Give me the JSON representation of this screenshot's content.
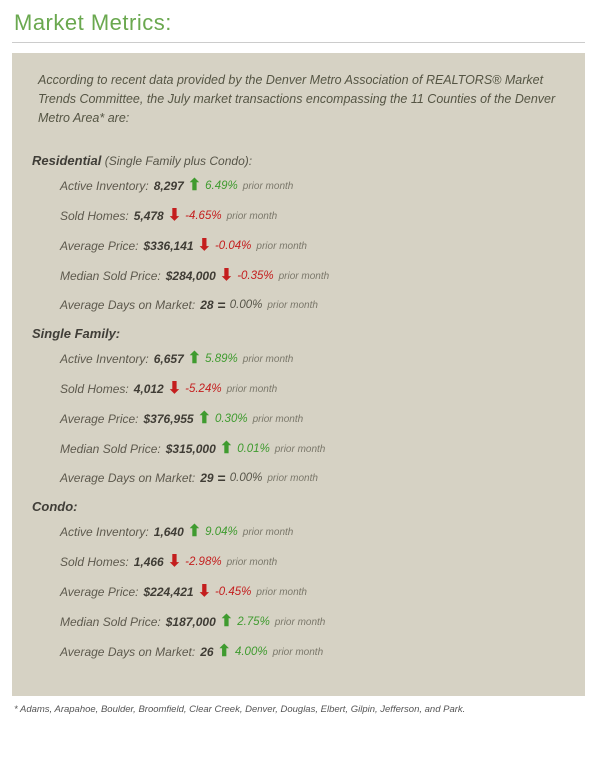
{
  "title": "Market Metrics:",
  "intro": "According to recent data provided by the Denver Metro Association of REALTORS® Market Trends Committee, the July market transactions encompassing the 11 Counties of the Denver Metro Area* are:",
  "sections": [
    {
      "heading": "Residential",
      "sub": " (Single Family plus Condo):",
      "metrics": [
        {
          "label": "Active Inventory:",
          "value": "8,297",
          "dir": "up",
          "pct": "6.49%",
          "prior": "prior month"
        },
        {
          "label": "Sold Homes:",
          "value": "5,478",
          "dir": "down",
          "pct": "-4.65%",
          "prior": "prior month"
        },
        {
          "label": "Average Price:",
          "value": "$336,141",
          "dir": "down",
          "pct": "-0.04%",
          "prior": "prior month"
        },
        {
          "label": "Median Sold Price:",
          "value": "$284,000",
          "dir": "down",
          "pct": "-0.35%",
          "prior": "prior month"
        },
        {
          "label": "Average Days on Market:",
          "value": "28",
          "dir": "eq",
          "pct": "0.00%",
          "prior": "prior month"
        }
      ]
    },
    {
      "heading": "Single Family:",
      "sub": "",
      "metrics": [
        {
          "label": "Active Inventory:",
          "value": "6,657",
          "dir": "up",
          "pct": "5.89%",
          "prior": "prior month"
        },
        {
          "label": "Sold Homes:",
          "value": "4,012",
          "dir": "down",
          "pct": "-5.24%",
          "prior": "prior month"
        },
        {
          "label": "Average Price:",
          "value": "$376,955",
          "dir": "up",
          "pct": "0.30%",
          "prior": "prior month"
        },
        {
          "label": "Median Sold Price:",
          "value": "$315,000",
          "dir": "up",
          "pct": "0.01%",
          "prior": "prior month"
        },
        {
          "label": "Average Days on Market:",
          "value": "29",
          "dir": "eq",
          "pct": "0.00%",
          "prior": "prior month"
        }
      ]
    },
    {
      "heading": "Condo:",
      "sub": "",
      "metrics": [
        {
          "label": "Active Inventory:",
          "value": "1,640",
          "dir": "up",
          "pct": "9.04%",
          "prior": "prior month"
        },
        {
          "label": "Sold Homes:",
          "value": "1,466",
          "dir": "down",
          "pct": "-2.98%",
          "prior": "prior month"
        },
        {
          "label": "Average Price:",
          "value": "$224,421",
          "dir": "down",
          "pct": "-0.45%",
          "prior": "prior month"
        },
        {
          "label": "Median Sold Price:",
          "value": "$187,000",
          "dir": "up",
          "pct": "2.75%",
          "prior": "prior month"
        },
        {
          "label": "Average Days on Market:",
          "value": "26",
          "dir": "up",
          "pct": "4.00%",
          "prior": "prior month"
        }
      ]
    }
  ],
  "footnote": "* Adams, Arapahoe, Boulder, Broomfield, Clear Creek, Denver, Douglas, Elbert, Gilpin, Jefferson, and Park.",
  "arrow_glyphs": {
    "up": "⬆",
    "down": "⬇",
    "eq": "="
  },
  "colors": {
    "title": "#6aa84f",
    "panel_bg": "#d6d2c4",
    "up": "#3f9b2f",
    "down": "#c41e1e",
    "text": "#575549"
  }
}
